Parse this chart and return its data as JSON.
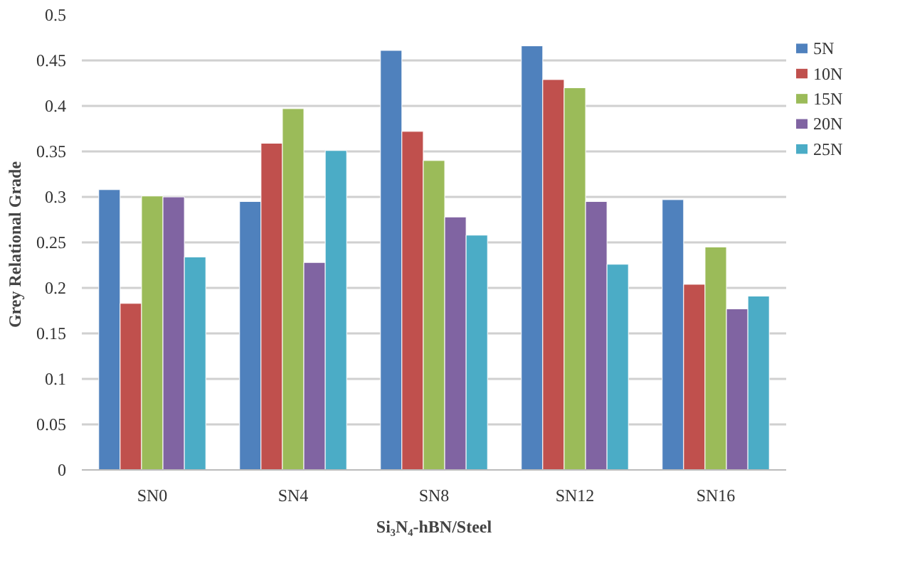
{
  "chart_data": {
    "type": "bar",
    "xlabel": "Si₃N₄-hBN/Steel",
    "ylabel": "Grey  Relational Grade",
    "categories": [
      "SN0",
      "SN4",
      "SN8",
      "SN12",
      "SN16"
    ],
    "series": [
      {
        "name": "5N",
        "color": "#4f81bd",
        "values": [
          0.308,
          0.295,
          0.461,
          0.466,
          0.297
        ]
      },
      {
        "name": "10N",
        "color": "#c0504d",
        "values": [
          0.183,
          0.359,
          0.372,
          0.429,
          0.204
        ]
      },
      {
        "name": "15N",
        "color": "#9bbb59",
        "values": [
          0.301,
          0.397,
          0.34,
          0.42,
          0.245
        ]
      },
      {
        "name": "20N",
        "color": "#8064a2",
        "values": [
          0.3,
          0.228,
          0.278,
          0.295,
          0.177
        ]
      },
      {
        "name": "25N",
        "color": "#4bacc6",
        "values": [
          0.234,
          0.351,
          0.258,
          0.226,
          0.191
        ]
      }
    ],
    "ylim": [
      0,
      0.5
    ],
    "yticks": [
      0,
      0.05,
      0.1,
      0.15,
      0.2,
      0.25,
      0.3,
      0.35,
      0.4,
      0.45,
      0.5
    ],
    "grid": "y",
    "legend": "right"
  }
}
